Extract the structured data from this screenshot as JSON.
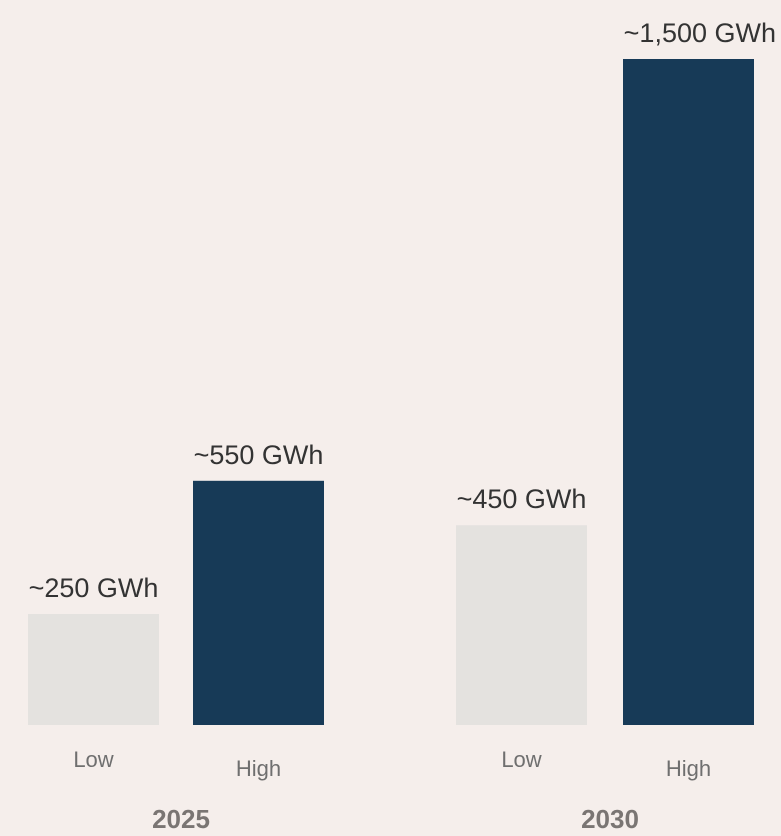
{
  "chart_data": {
    "type": "bar",
    "title": "",
    "xlabel": "",
    "ylabel": "",
    "unit": "GWh",
    "groups": [
      {
        "label": "2025",
        "bars": [
          {
            "category": "Low",
            "value": 250,
            "label": "~250 GWh",
            "color": "#e4e2df"
          },
          {
            "category": "High",
            "value": 550,
            "label": "~550 GWh",
            "color": "#173a57"
          }
        ]
      },
      {
        "label": "2030",
        "bars": [
          {
            "category": "Low",
            "value": 450,
            "label": "~450 GWh",
            "color": "#e4e2df"
          },
          {
            "category": "High",
            "value": 1500,
            "label": "~1,500 GWh",
            "color": "#173a57"
          }
        ]
      }
    ],
    "ylim": [
      0,
      1500
    ],
    "grid": false,
    "legend": "none"
  }
}
